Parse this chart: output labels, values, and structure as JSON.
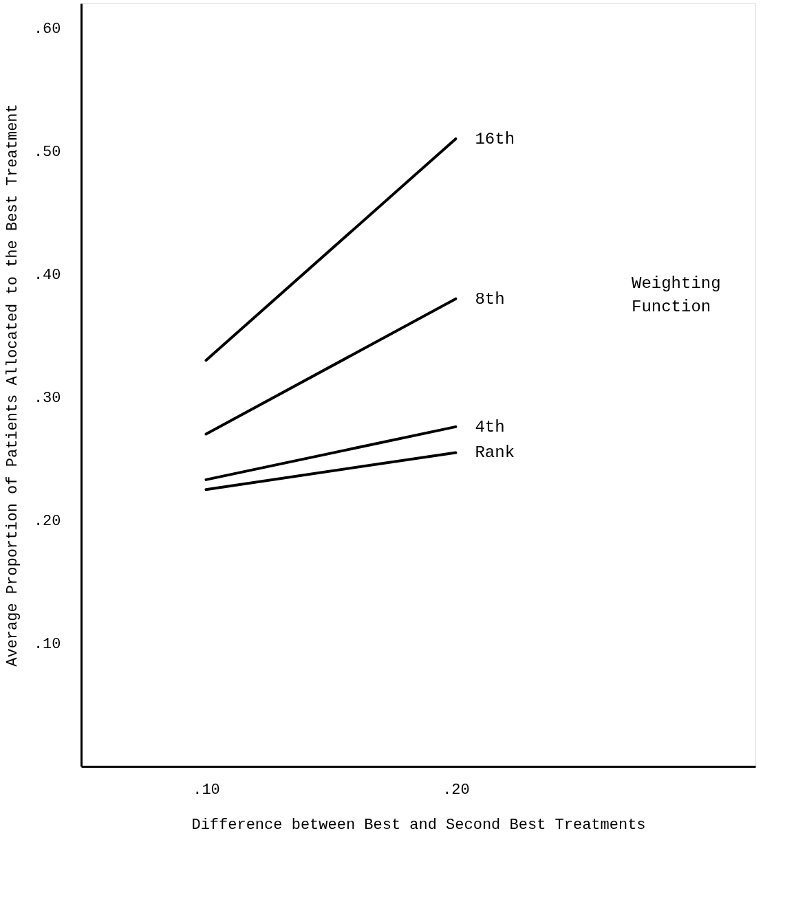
{
  "chart_data": {
    "type": "line",
    "xlabel": "Difference between Best and Second Best Treatments",
    "ylabel": "Average Proportion of Patients Allocated to the Best Treatment",
    "legend_title": "Weighting Function",
    "x": [
      0.1,
      0.2
    ],
    "xlim": [
      0.05,
      0.32
    ],
    "xticks": [
      {
        "value": 0.1,
        "label": ".10"
      },
      {
        "value": 0.2,
        "label": ".20"
      }
    ],
    "ylim": [
      0,
      0.62
    ],
    "yticks": [
      {
        "value": 0.1,
        "label": ".10"
      },
      {
        "value": 0.2,
        "label": ".20"
      },
      {
        "value": 0.3,
        "label": ".30"
      },
      {
        "value": 0.4,
        "label": ".40"
      },
      {
        "value": 0.5,
        "label": ".50"
      },
      {
        "value": 0.6,
        "label": ".60"
      }
    ],
    "line_style": "solid",
    "series": [
      {
        "name": "16th",
        "color": "#000000",
        "values": [
          0.33,
          0.51
        ]
      },
      {
        "name": "8th",
        "color": "#000000",
        "values": [
          0.27,
          0.38
        ]
      },
      {
        "name": "4th",
        "color": "#000000",
        "values": [
          0.233,
          0.276
        ]
      },
      {
        "name": "Rank",
        "color": "#000000",
        "values": [
          0.225,
          0.255
        ]
      }
    ]
  }
}
